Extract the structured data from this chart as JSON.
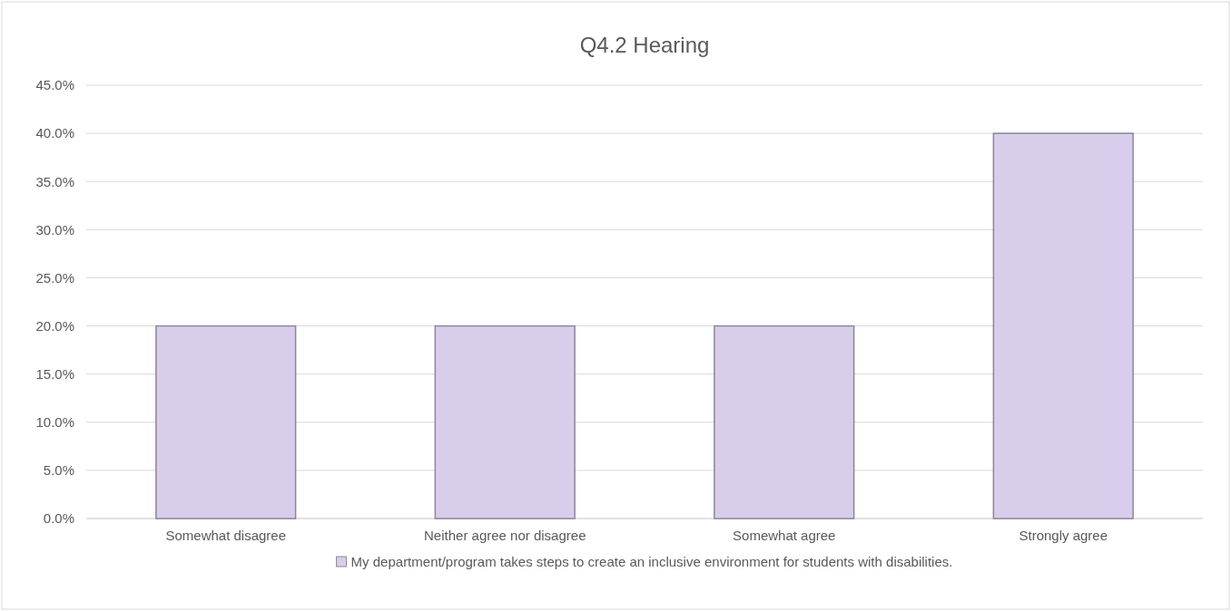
{
  "chart_data": {
    "type": "bar",
    "title": "Q4.2 Hearing",
    "categories": [
      "Somewhat disagree",
      "Neither agree nor disagree",
      "Somewhat agree",
      "Strongly agree"
    ],
    "series": [
      {
        "name": "My department/program takes steps to create an inclusive environment for students with disabilities.",
        "color": "#d9cdec",
        "values": [
          20,
          20,
          20,
          40
        ]
      }
    ],
    "ylim": [
      0,
      45
    ],
    "yticks": [
      {
        "value": 0,
        "label": "0.0%"
      },
      {
        "value": 5,
        "label": "5.0%"
      },
      {
        "value": 10,
        "label": "10.0%"
      },
      {
        "value": 15,
        "label": "15.0%"
      },
      {
        "value": 20,
        "label": "20.0%"
      },
      {
        "value": 25,
        "label": "25.0%"
      },
      {
        "value": 30,
        "label": "30.0%"
      },
      {
        "value": 35,
        "label": "35.0%"
      },
      {
        "value": 40,
        "label": "40.0%"
      },
      {
        "value": 45,
        "label": "45.0%"
      }
    ],
    "grid": "y",
    "legend": "bottom"
  }
}
